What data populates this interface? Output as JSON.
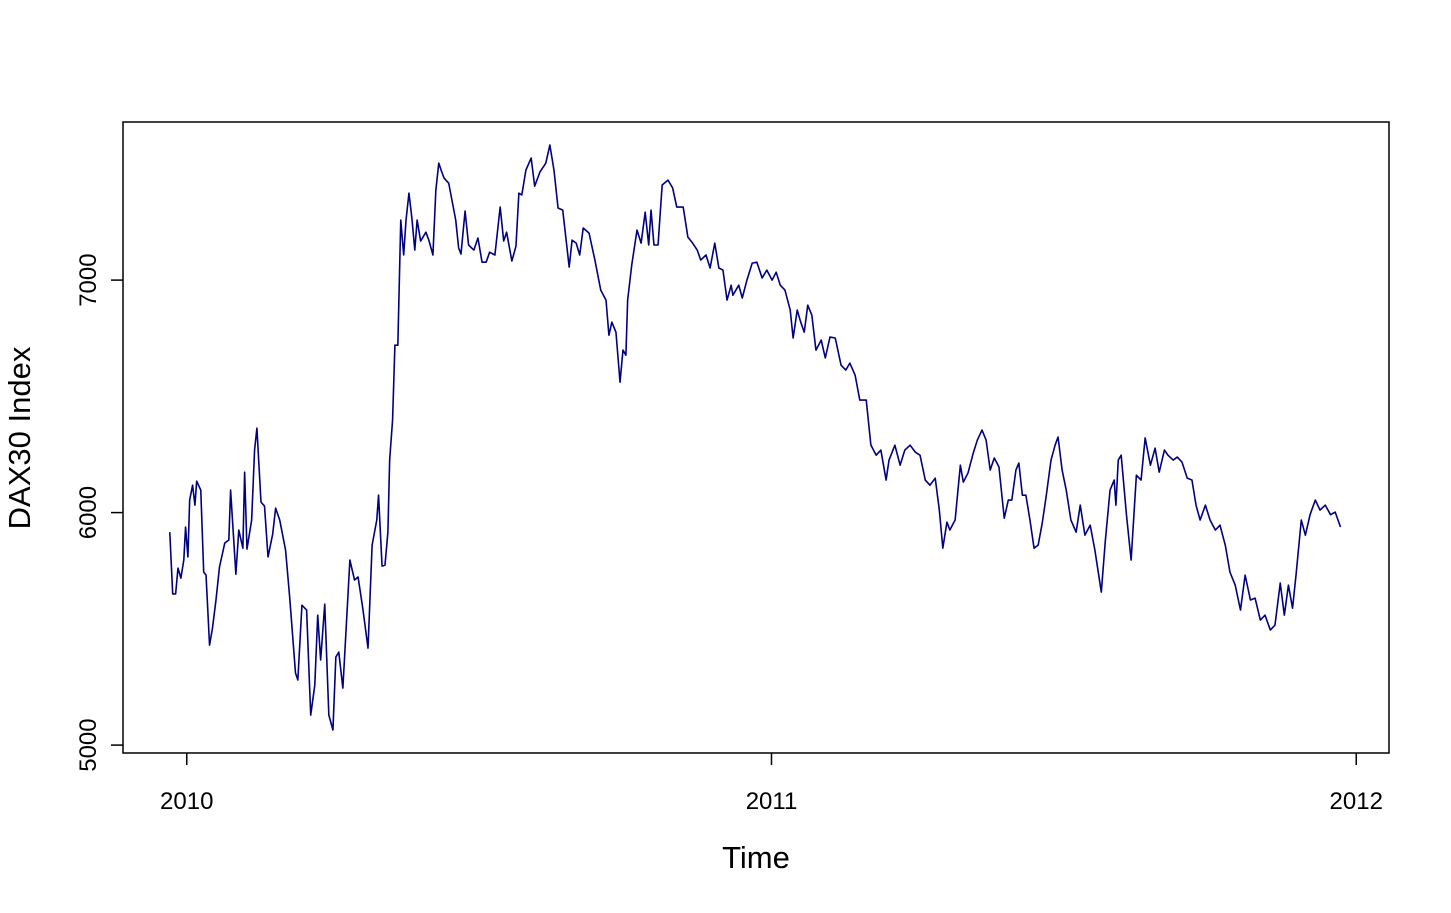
{
  "chart_data": {
    "type": "line",
    "xlabel": "Time",
    "ylabel": "DAX30 Index",
    "x": [
      2009.971,
      2009.976,
      2009.981,
      2009.985,
      2009.99,
      2009.995,
      2009.998,
      2010.002,
      2010.005,
      2010.01,
      2010.014,
      2010.017,
      2010.024,
      2010.029,
      2010.033,
      2010.039,
      2010.044,
      2010.05,
      2010.056,
      2010.065,
      2010.072,
      2010.075,
      2010.084,
      2010.089,
      2010.096,
      2010.099,
      2010.103,
      2010.111,
      2010.116,
      2010.12,
      2010.127,
      2010.133,
      2010.139,
      2010.147,
      2010.152,
      2010.159,
      2010.169,
      2010.176,
      2010.186,
      2010.19,
      2010.197,
      2010.205,
      2010.212,
      2010.219,
      2010.224,
      2010.229,
      2010.236,
      2010.243,
      2010.25,
      2010.255,
      2010.26,
      2010.267,
      2010.279,
      2010.287,
      2010.293,
      2010.301,
      2010.31,
      2010.317,
      2010.325,
      2010.328,
      2010.334,
      2010.339,
      2010.344,
      2010.347,
      2010.352,
      2010.356,
      2010.361,
      2010.366,
      2010.371,
      2010.375,
      2010.38,
      2010.385,
      2010.39,
      2010.394,
      2010.4,
      2010.409,
      2010.414,
      2010.421,
      2010.426,
      2010.431,
      2010.435,
      2010.44,
      2010.448,
      2010.46,
      2010.465,
      2010.469,
      2010.476,
      2010.482,
      2010.491,
      2010.498,
      2010.505,
      2010.512,
      2010.518,
      2010.527,
      2010.536,
      2010.542,
      2010.547,
      2010.556,
      2010.563,
      2010.568,
      2010.573,
      2010.58,
      2010.589,
      2010.595,
      2010.604,
      2010.614,
      2010.621,
      2010.628,
      2010.635,
      2010.643,
      2010.654,
      2010.659,
      2010.666,
      2010.672,
      2010.678,
      2010.688,
      2010.698,
      2010.708,
      2010.717,
      2010.722,
      2010.727,
      2010.734,
      2010.741,
      2010.746,
      2010.751,
      2010.754,
      2010.761,
      2010.77,
      2010.777,
      2010.784,
      2010.79,
      2010.794,
      2010.799,
      2010.806,
      2010.813,
      2010.823,
      2010.831,
      2010.838,
      2010.849,
      2010.857,
      2010.864,
      2010.873,
      2010.879,
      2010.888,
      2010.895,
      2010.903,
      2010.91,
      2010.917,
      2010.924,
      2010.931,
      2010.934,
      2010.944,
      2010.95,
      2010.958,
      2010.967,
      2010.975,
      2010.984,
      2010.992,
      2011.001,
      2011.008,
      2011.015,
      2011.023,
      2011.032,
      2011.037,
      2011.044,
      2011.05,
      2011.056,
      2011.062,
      2011.069,
      2011.076,
      2011.085,
      2011.092,
      2011.1,
      2011.109,
      2011.119,
      2011.127,
      2011.134,
      2011.143,
      2011.151,
      2011.162,
      2011.17,
      2011.179,
      2011.187,
      2011.196,
      2011.201,
      2011.211,
      2011.22,
      2011.228,
      2011.237,
      2011.246,
      2011.254,
      2011.263,
      2011.271,
      2011.28,
      2011.287,
      2011.293,
      2011.3,
      2011.305,
      2011.314,
      2011.323,
      2011.328,
      2011.336,
      2011.345,
      2011.352,
      2011.36,
      2011.367,
      2011.374,
      2011.381,
      2011.389,
      2011.398,
      2011.405,
      2011.411,
      2011.418,
      2011.423,
      2011.429,
      2011.435,
      2011.442,
      2011.449,
      2011.456,
      2011.463,
      2011.47,
      2011.478,
      2011.485,
      2011.49,
      2011.497,
      2011.504,
      2011.512,
      2011.521,
      2011.528,
      2011.536,
      2011.545,
      2011.553,
      2011.564,
      2011.571,
      2011.579,
      2011.586,
      2011.589,
      2011.593,
      2011.598,
      2011.607,
      2011.615,
      2011.624,
      2011.632,
      2011.639,
      2011.648,
      2011.656,
      2011.663,
      2011.672,
      2011.678,
      2011.687,
      2011.694,
      2011.702,
      2011.711,
      2011.719,
      2011.726,
      2011.733,
      2011.742,
      2011.75,
      2011.759,
      2011.767,
      2011.776,
      2011.784,
      2011.793,
      2011.802,
      2011.81,
      2011.819,
      2011.827,
      2011.836,
      2011.844,
      2011.853,
      2011.861,
      2011.87,
      2011.877,
      2011.884,
      2011.891,
      2011.897,
      2011.906,
      2011.913,
      2011.921,
      2011.93,
      2011.938,
      2011.947,
      2011.956,
      2011.964,
      2011.973
    ],
    "series": [
      {
        "name": "DAX30",
        "color": "#000080",
        "values": [
          5916,
          5650,
          5650,
          5761,
          5718,
          5796,
          5938,
          5809,
          6054,
          6118,
          6032,
          6135,
          6097,
          5744,
          5731,
          5430,
          5503,
          5624,
          5766,
          5869,
          5882,
          6097,
          5735,
          5925,
          5847,
          6174,
          5843,
          5968,
          6269,
          6363,
          6045,
          6028,
          5809,
          5908,
          6019,
          5968,
          5839,
          5637,
          5310,
          5280,
          5602,
          5581,
          5129,
          5258,
          5559,
          5366,
          5606,
          5129,
          5065,
          5379,
          5400,
          5245,
          5796,
          5710,
          5723,
          5589,
          5417,
          5860,
          5968,
          6075,
          5770,
          5774,
          5916,
          6226,
          6398,
          6720,
          6720,
          7258,
          7108,
          7258,
          7374,
          7267,
          7129,
          7258,
          7168,
          7206,
          7172,
          7108,
          7387,
          7503,
          7473,
          7439,
          7417,
          7258,
          7138,
          7112,
          7297,
          7151,
          7129,
          7181,
          7077,
          7077,
          7120,
          7108,
          7314,
          7168,
          7206,
          7082,
          7146,
          7374,
          7366,
          7473,
          7525,
          7404,
          7465,
          7503,
          7581,
          7473,
          7310,
          7301,
          7056,
          7172,
          7159,
          7108,
          7224,
          7202,
          7086,
          6957,
          6914,
          6763,
          6819,
          6776,
          6561,
          6699,
          6677,
          6914,
          7065,
          7215,
          7159,
          7292,
          7151,
          7301,
          7151,
          7151,
          7409,
          7430,
          7396,
          7314,
          7314,
          7185,
          7163,
          7129,
          7086,
          7108,
          7052,
          7159,
          7052,
          7043,
          6914,
          6978,
          6935,
          6978,
          6923,
          7000,
          7073,
          7077,
          7009,
          7043,
          7000,
          7034,
          6978,
          6957,
          6871,
          6751,
          6871,
          6819,
          6776,
          6892,
          6849,
          6699,
          6742,
          6665,
          6755,
          6751,
          6634,
          6613,
          6643,
          6591,
          6484,
          6484,
          6290,
          6247,
          6269,
          6140,
          6226,
          6290,
          6204,
          6269,
          6290,
          6260,
          6247,
          6140,
          6118,
          6148,
          6011,
          5847,
          5959,
          5925,
          5968,
          6204,
          6131,
          6170,
          6256,
          6312,
          6355,
          6312,
          6183,
          6235,
          6196,
          5976,
          6054,
          6054,
          6183,
          6213,
          6075,
          6075,
          5968,
          5847,
          5860,
          5955,
          6075,
          6226,
          6290,
          6325,
          6183,
          6097,
          5968,
          5916,
          6032,
          5903,
          5946,
          5839,
          5658,
          5882,
          6097,
          6140,
          6032,
          6226,
          6247,
          5991,
          5796,
          6161,
          6140,
          6321,
          6204,
          6277,
          6174,
          6269,
          6247,
          6226,
          6239,
          6217,
          6148,
          6140,
          6032,
          5968,
          6032,
          5968,
          5925,
          5946,
          5860,
          5744,
          5688,
          5581,
          5731,
          5624,
          5632,
          5538,
          5559,
          5495,
          5516,
          5697,
          5559,
          5688,
          5589,
          5731,
          5968,
          5903,
          5991,
          6054,
          6011,
          6032,
          5991,
          6002,
          5938
        ]
      }
    ],
    "xlim": [
      2009.891,
      2012.056
    ],
    "xticks": [
      2010,
      2011,
      2012
    ],
    "ylim": [
      4966,
      7680
    ],
    "yticks": [
      5000,
      6000,
      7000
    ]
  }
}
